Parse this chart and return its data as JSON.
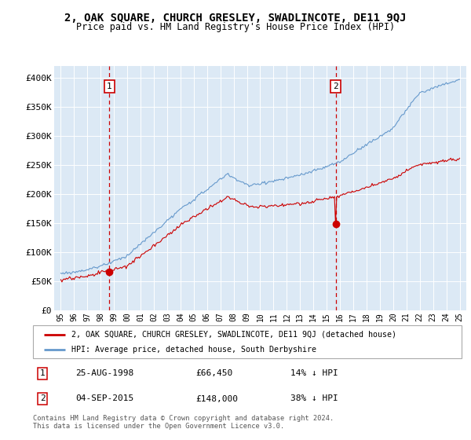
{
  "title": "2, OAK SQUARE, CHURCH GRESLEY, SWADLINCOTE, DE11 9QJ",
  "subtitle": "Price paid vs. HM Land Registry's House Price Index (HPI)",
  "legend_line1": "2, OAK SQUARE, CHURCH GRESLEY, SWADLINCOTE, DE11 9QJ (detached house)",
  "legend_line2": "HPI: Average price, detached house, South Derbyshire",
  "footer": "Contains HM Land Registry data © Crown copyright and database right 2024.\nThis data is licensed under the Open Government Licence v3.0.",
  "sale1_date": 1998.65,
  "sale1_price": 66450,
  "sale1_label": "25-AUG-1998",
  "sale1_pct": "14%",
  "sale2_date": 2015.67,
  "sale2_price": 148000,
  "sale2_label": "04-SEP-2015",
  "sale2_pct": "38%",
  "xlim": [
    1994.5,
    2025.5
  ],
  "ylim": [
    0,
    420000
  ],
  "yticks": [
    0,
    50000,
    100000,
    150000,
    200000,
    250000,
    300000,
    350000,
    400000
  ],
  "ytick_labels": [
    "£0",
    "£50K",
    "£100K",
    "£150K",
    "£200K",
    "£250K",
    "£300K",
    "£350K",
    "£400K"
  ],
  "plot_bg": "#dce9f5",
  "red_color": "#cc0000",
  "blue_color": "#6699cc",
  "grid_color": "#ffffff",
  "title_fontsize": 10,
  "subtitle_fontsize": 9
}
